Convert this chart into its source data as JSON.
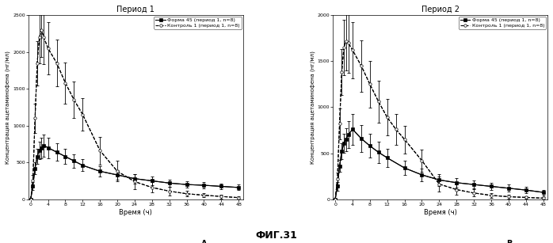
{
  "title1": "Период 1",
  "title2": "Период 2",
  "xlabel": "Время (ч)",
  "ylabel": "Концентрация ацетаминофена (нг/мл)",
  "label_A": "А",
  "label_B": "В",
  "fig_label": "ФИГ.31",
  "legend1_line1": "Форма 45 (период 1, n=8)",
  "legend1_line2": "Контроль 1 (период 1, n=8)",
  "xticks": [
    0,
    4,
    8,
    12,
    16,
    20,
    24,
    28,
    32,
    36,
    40,
    44,
    48
  ],
  "ylim1": [
    0,
    2500
  ],
  "yticks1": [
    0,
    500,
    1000,
    1500,
    2000,
    2500
  ],
  "ylim2": [
    0,
    2000
  ],
  "yticks2": [
    0,
    500,
    1000,
    1500,
    2000
  ],
  "p1_solid_x": [
    0,
    0.5,
    1,
    1.5,
    2,
    2.5,
    3,
    4,
    6,
    8,
    10,
    12,
    16,
    20,
    24,
    28,
    32,
    36,
    40,
    44,
    48
  ],
  "p1_solid_y": [
    0,
    180,
    420,
    580,
    660,
    700,
    730,
    700,
    640,
    580,
    520,
    460,
    380,
    330,
    280,
    250,
    220,
    200,
    190,
    175,
    160
  ],
  "p1_solid_yerr": [
    0,
    50,
    80,
    100,
    120,
    140,
    150,
    140,
    120,
    100,
    90,
    80,
    70,
    65,
    65,
    55,
    50,
    45,
    45,
    40,
    38
  ],
  "p1_dash_x": [
    0,
    0.5,
    1,
    1.5,
    2,
    2.5,
    3,
    4,
    6,
    8,
    10,
    12,
    16,
    20,
    24,
    28,
    32,
    36,
    40,
    44,
    48
  ],
  "p1_dash_y": [
    0,
    250,
    1100,
    1850,
    2200,
    2300,
    2200,
    2050,
    1850,
    1580,
    1350,
    1150,
    660,
    380,
    240,
    160,
    110,
    75,
    55,
    38,
    22
  ],
  "p1_dash_yerr": [
    0,
    80,
    200,
    300,
    350,
    370,
    370,
    350,
    320,
    280,
    250,
    220,
    190,
    140,
    100,
    70,
    55,
    40,
    30,
    25,
    18
  ],
  "p2_solid_x": [
    0,
    0.5,
    1,
    1.5,
    2,
    2.5,
    3,
    4,
    6,
    8,
    10,
    12,
    16,
    20,
    24,
    28,
    32,
    36,
    40,
    44,
    48
  ],
  "p2_solid_y": [
    0,
    140,
    360,
    520,
    610,
    650,
    700,
    760,
    660,
    580,
    510,
    450,
    340,
    265,
    210,
    180,
    160,
    140,
    120,
    100,
    75
  ],
  "p2_solid_yerr": [
    0,
    45,
    65,
    85,
    105,
    125,
    145,
    165,
    145,
    130,
    115,
    100,
    80,
    68,
    65,
    50,
    45,
    40,
    38,
    35,
    30
  ],
  "p2_dash_x": [
    0,
    0.5,
    1,
    1.5,
    2,
    2.5,
    3,
    4,
    6,
    8,
    10,
    12,
    14,
    16,
    20,
    24,
    28,
    32,
    36,
    40,
    44,
    48
  ],
  "p2_dash_y": [
    0,
    220,
    820,
    1380,
    1650,
    1720,
    1700,
    1620,
    1450,
    1250,
    1060,
    890,
    760,
    650,
    420,
    165,
    105,
    68,
    42,
    28,
    20,
    12
  ],
  "p2_dash_yerr": [
    0,
    70,
    170,
    250,
    300,
    320,
    330,
    305,
    280,
    255,
    225,
    200,
    170,
    150,
    120,
    80,
    58,
    40,
    28,
    20,
    16,
    10
  ]
}
